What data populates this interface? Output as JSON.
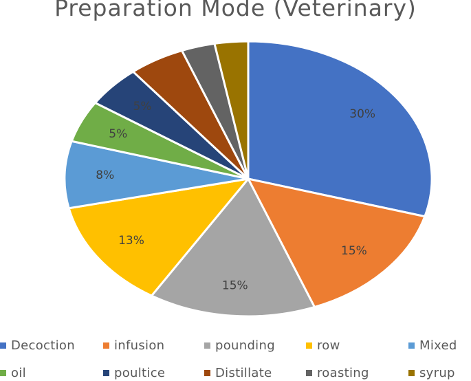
{
  "chart_data": {
    "type": "pie",
    "title": "Preparation Mode (Veterinary)",
    "categories": [
      "Decoction",
      "infusion",
      "pounding",
      "row",
      "Mixed",
      "oil",
      "poultice",
      "Distillate",
      "roasting",
      "syrup"
    ],
    "values": [
      30,
      15,
      15,
      13,
      8,
      5,
      5,
      5,
      3,
      3
    ],
    "data_labels": [
      "30%",
      "15%",
      "15%",
      "13%",
      "8%",
      "5%",
      "5%",
      "",
      "",
      ""
    ],
    "colors": [
      "#4472C4",
      "#ED7D31",
      "#A5A5A5",
      "#FFC000",
      "#5B9BD5",
      "#70AD47",
      "#264478",
      "#9E480E",
      "#636363",
      "#997300"
    ],
    "legend_position": "bottom"
  }
}
